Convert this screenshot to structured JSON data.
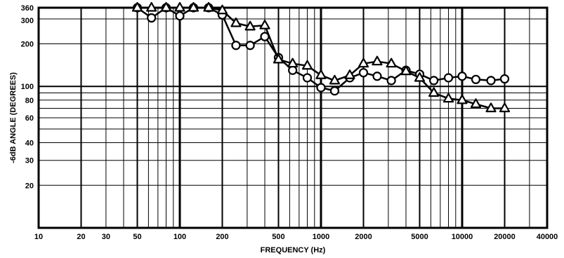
{
  "chart_data": {
    "type": "line",
    "xlabel": "FREQUENCY (Hz)",
    "ylabel": "-6dB ANGLE (DEGREES)",
    "x_scale": "log",
    "y_scale": "log",
    "xlim": [
      10,
      40000
    ],
    "ylim": [
      10,
      360
    ],
    "grid": true,
    "x_ticks": [
      10,
      20,
      30,
      50,
      100,
      200,
      500,
      1000,
      2000,
      5000,
      10000,
      20000,
      40000
    ],
    "x_tick_labels": [
      "10",
      "20",
      "30",
      "50",
      "100",
      "200",
      "500",
      "1000",
      "2000",
      "5000",
      "10000",
      "20000",
      "40000"
    ],
    "y_ticks": [
      20,
      30,
      40,
      60,
      80,
      100,
      200,
      300,
      360
    ],
    "y_tick_labels": [
      "20",
      "30",
      "40",
      "60",
      "80",
      "100",
      "200",
      "300",
      "360"
    ],
    "x": [
      50,
      63,
      80,
      100,
      125,
      160,
      200,
      250,
      315,
      400,
      500,
      630,
      800,
      1000,
      1250,
      1600,
      2000,
      2500,
      3150,
      4000,
      5000,
      6300,
      8000,
      10000,
      12500,
      16000,
      20000
    ],
    "series": [
      {
        "marker": "circle",
        "values": [
          360,
          305,
          360,
          315,
          360,
          360,
          320,
          195,
          195,
          225,
          160,
          130,
          115,
          98,
          93,
          115,
          125,
          118,
          110,
          130,
          122,
          110,
          115,
          118,
          112,
          110,
          113
        ]
      },
      {
        "marker": "triangle",
        "values": [
          360,
          360,
          360,
          360,
          360,
          360,
          345,
          280,
          265,
          270,
          155,
          145,
          140,
          120,
          110,
          120,
          145,
          150,
          145,
          128,
          115,
          90,
          82,
          80,
          75,
          70,
          70
        ]
      }
    ]
  }
}
